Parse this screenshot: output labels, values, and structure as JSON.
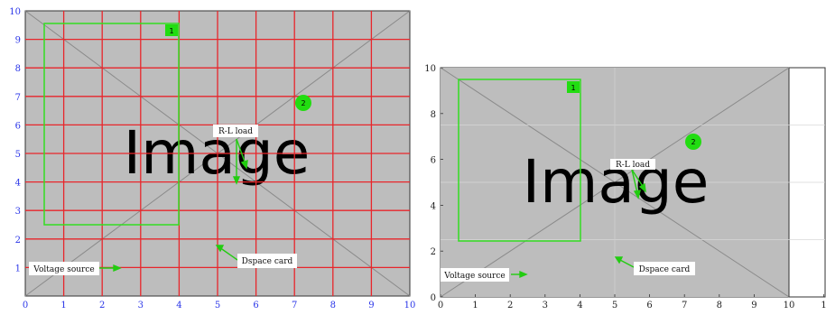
{
  "colors": {
    "placeholder_bg": "#bdbdbd",
    "grid_red": "#e8262b",
    "frame_green": "#33dd22",
    "tick_blue": "#2a35e8",
    "axis_black": "#222222"
  },
  "placeholder_text": "Image",
  "left_panel": {
    "x_ticks": [
      "0",
      "1",
      "2",
      "3",
      "4",
      "5",
      "6",
      "7",
      "8",
      "9",
      "10"
    ],
    "y_ticks": [
      "1",
      "2",
      "3",
      "4",
      "5",
      "6",
      "7",
      "8",
      "9",
      "10"
    ],
    "rect_marker": "1",
    "circle_marker": "2",
    "labels": {
      "rl_load": "R-L load",
      "dspace_card": "Dspace card",
      "voltage_source": "Voltage source"
    }
  },
  "right_panel": {
    "x_ticks": [
      "0",
      "1",
      "2",
      "3",
      "4",
      "5",
      "6",
      "7",
      "8",
      "9",
      "10",
      "1"
    ],
    "y_ticks": [
      "0",
      "2",
      "4",
      "6",
      "8",
      "10"
    ],
    "rect_marker": "1",
    "circle_marker": "2",
    "labels": {
      "rl_load": "R-L load",
      "dspace_card": "Dspace card",
      "voltage_source": "Voltage source"
    }
  }
}
